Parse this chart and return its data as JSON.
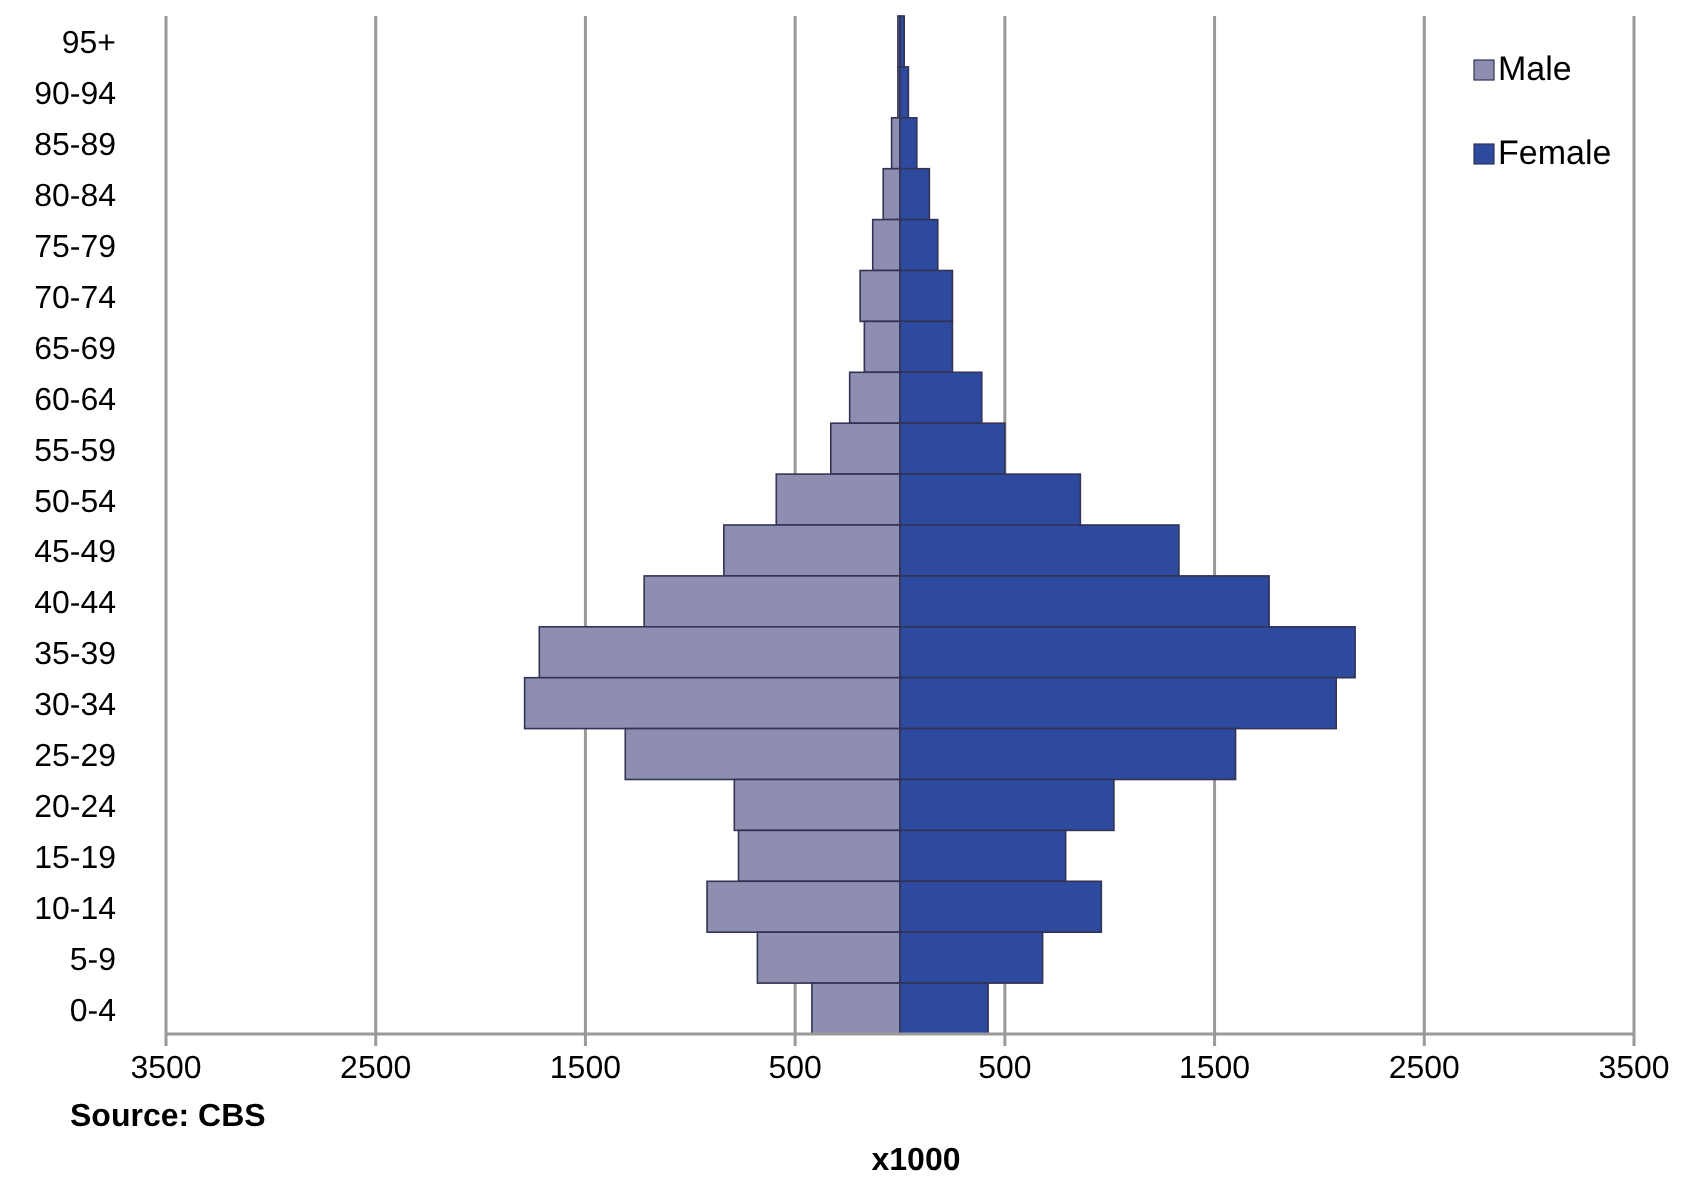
{
  "chart_data": {
    "type": "bar",
    "orientation": "horizontal",
    "stacked": true,
    "categories": [
      "95+",
      "90-94",
      "85-89",
      "80-84",
      "75-79",
      "70-74",
      "65-69",
      "60-64",
      "55-59",
      "50-54",
      "45-49",
      "40-44",
      "35-39",
      "30-34",
      "25-29",
      "20-24",
      "15-19",
      "10-14",
      "5-9",
      "0-4"
    ],
    "series": [
      {
        "name": "Male",
        "color": "#8e8eb0",
        "values": [
          -10,
          -10,
          -40,
          -80,
          -130,
          -190,
          -170,
          -240,
          -330,
          -590,
          -840,
          -1220,
          -1720,
          -1790,
          -1310,
          -790,
          -770,
          -920,
          -680,
          -420
        ]
      },
      {
        "name": "Female",
        "color": "#2e4a9e",
        "values": [
          20,
          40,
          80,
          140,
          180,
          250,
          250,
          390,
          500,
          860,
          1330,
          1760,
          2170,
          2080,
          1600,
          1020,
          790,
          960,
          680,
          420
        ]
      }
    ],
    "xlim": [
      -3500,
      3500
    ],
    "xticks": [
      {
        "value": -3500,
        "label": "3500"
      },
      {
        "value": -2500,
        "label": "2500"
      },
      {
        "value": -1500,
        "label": "1500"
      },
      {
        "value": -500,
        "label": "500"
      },
      500,
      1500,
      2500,
      3500
    ],
    "xlabel": "x1000",
    "annotations": [
      "Source: CBS"
    ],
    "grid": "x",
    "legend": "top right"
  }
}
